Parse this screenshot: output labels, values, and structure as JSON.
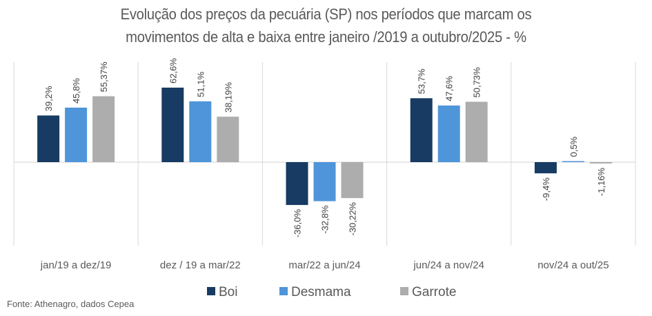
{
  "chart_data": {
    "type": "bar",
    "title_lines": [
      "Evolução dos preços da pecuária (SP) nos períodos que marcam os",
      "movimentos de alta e baixa entre janeiro /2019 a outubro/2025 - %"
    ],
    "categories": [
      "jan/19 a dez/19",
      "dez / 19 a mar/22",
      "mar/22 a jun/24",
      "jun/24 a nov/24",
      "nov/24 a out/25"
    ],
    "series": [
      {
        "name": "Boi",
        "color": "#173b62",
        "values": [
          39.2,
          62.6,
          -36.0,
          53.7,
          -9.4
        ],
        "labels": [
          "39,2%",
          "62,6%",
          "-36,0%",
          "53,7%",
          "-9,4%"
        ]
      },
      {
        "name": "Desmama",
        "color": "#4f95d9",
        "values": [
          45.8,
          51.1,
          -32.8,
          47.6,
          0.5
        ],
        "labels": [
          "45,8%",
          "51,1%",
          "-32,8%",
          "47,6%",
          "0,5%"
        ]
      },
      {
        "name": "Garrote",
        "color": "#adadad",
        "values": [
          55.37,
          38.19,
          -30.22,
          50.73,
          -1.16
        ],
        "labels": [
          "55,37%",
          "38,19%",
          "-30,22%",
          "50,73%",
          "-1,16%"
        ]
      }
    ],
    "ylim": [
      -70,
      85
    ],
    "grid": "vertical category separators",
    "legend": "bottom-center",
    "source": "Fonte: Athenagro, dados Cepea"
  }
}
